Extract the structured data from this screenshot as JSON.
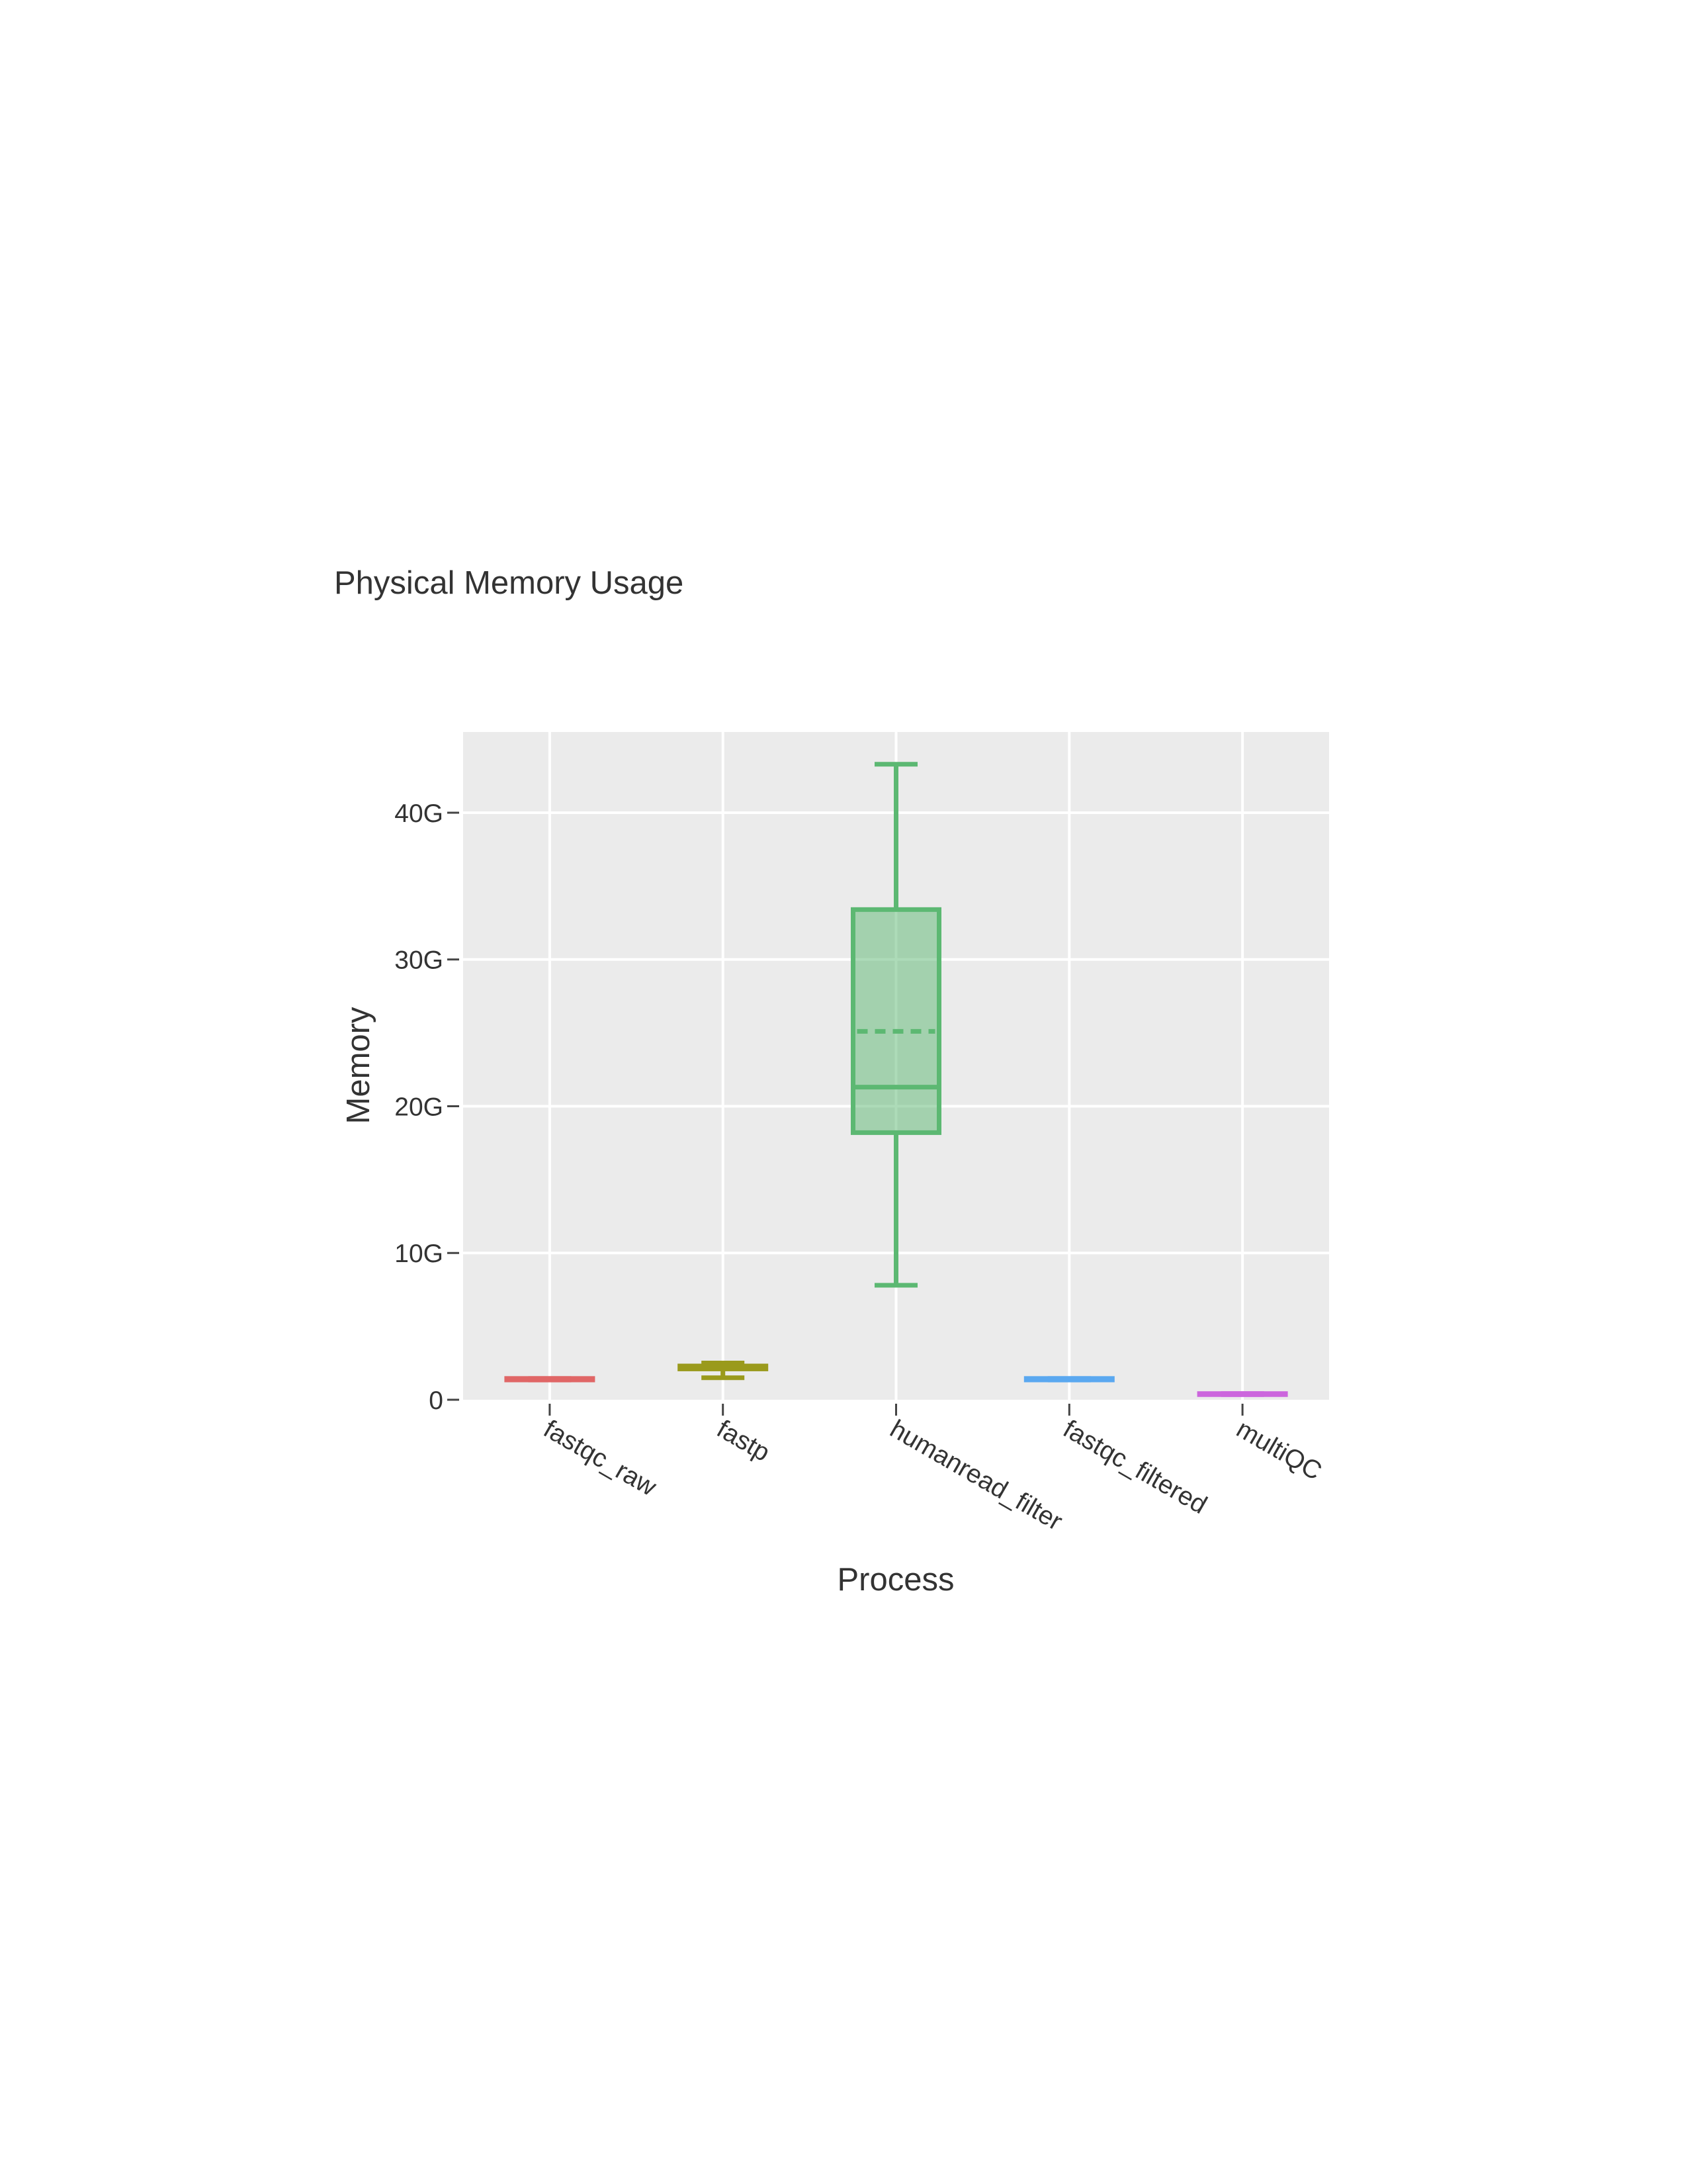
{
  "chart_data": {
    "type": "box",
    "title": "Physical Memory Usage",
    "xlabel": "Process",
    "ylabel": "Memory",
    "ylim": [
      0,
      45.5
    ],
    "y_unit": "G",
    "yticks": [
      {
        "value": 0,
        "label": "0"
      },
      {
        "value": 10,
        "label": "10G"
      },
      {
        "value": 20,
        "label": "20G"
      },
      {
        "value": 30,
        "label": "30G"
      },
      {
        "value": 40,
        "label": "40G"
      }
    ],
    "categories": [
      "fastqc_raw",
      "fastp",
      "humanread_filter",
      "fastqc_filtered",
      "multiQC"
    ],
    "grid": true,
    "legend": "none",
    "background": "#ebebeb",
    "series": [
      {
        "category": "fastqc_raw",
        "color": "#e06666",
        "min": 1.35,
        "q1": 1.35,
        "median": 1.4,
        "mean": 1.4,
        "q3": 1.45,
        "max": 1.45
      },
      {
        "category": "fastp",
        "color": "#9a9a1c",
        "min": 1.5,
        "q1": 2.1,
        "median": 2.2,
        "mean": 2.2,
        "q3": 2.3,
        "max": 2.5
      },
      {
        "category": "humanread_filter",
        "color": "#5cb872",
        "min": 7.8,
        "q1": 18.2,
        "median": 21.3,
        "mean": 25.1,
        "q3": 33.4,
        "max": 43.3
      },
      {
        "category": "fastqc_filtered",
        "color": "#5aa8f0",
        "min": 1.35,
        "q1": 1.35,
        "median": 1.4,
        "mean": 1.4,
        "q3": 1.45,
        "max": 1.45
      },
      {
        "category": "multiQC",
        "color": "#cc66dd",
        "min": 0.35,
        "q1": 0.35,
        "median": 0.38,
        "mean": 0.38,
        "q3": 0.42,
        "max": 0.42
      }
    ]
  }
}
